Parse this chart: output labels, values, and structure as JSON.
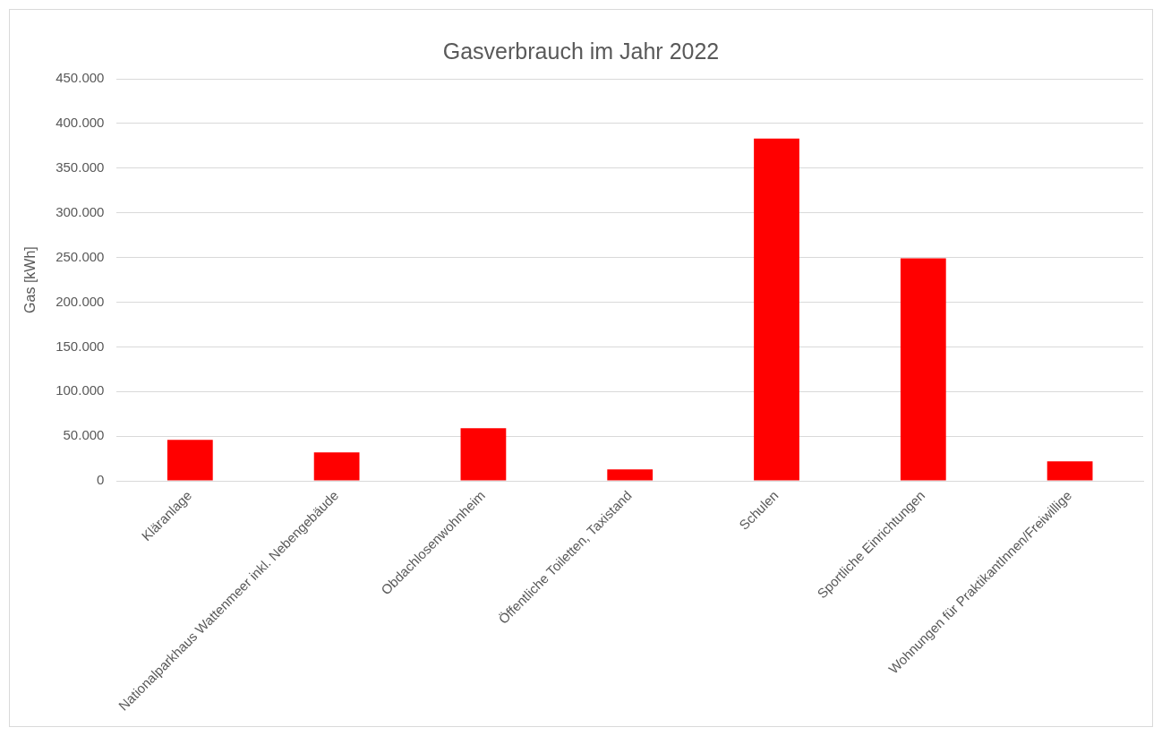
{
  "chart_data": {
    "type": "bar",
    "title": "Gasverbrauch im Jahr 2022",
    "ylabel": "Gas [kWh]",
    "categories": [
      "Kläranlage",
      "Nationalparkhaus Wattenmeer inkl. Nebengebäude",
      "Obdachlosenwohnheim",
      "Öffentliche Toiletten, Taxistand",
      "Schulen",
      "Sportliche Einrichtungen",
      "Wohnungen für PraktikantInnen/Freiwillige"
    ],
    "values": [
      46000,
      32000,
      59000,
      13000,
      383000,
      249000,
      22000
    ],
    "color": "#ff0000",
    "ylim": [
      0,
      450000
    ],
    "yticks": [
      0,
      {
        "value": 50000,
        "label": "50.000"
      },
      {
        "value": 100000,
        "label": "100.000"
      },
      {
        "value": 150000,
        "label": "150.000"
      },
      {
        "value": 200000,
        "label": "200.000"
      },
      {
        "value": 250000,
        "label": "250.000"
      },
      {
        "value": 300000,
        "label": "300.000"
      },
      {
        "value": 350000,
        "label": "350.000"
      },
      {
        "value": 400000,
        "label": "400.000"
      },
      {
        "value": 450000,
        "label": "450.000"
      }
    ],
    "grid": "y",
    "legend": false
  }
}
